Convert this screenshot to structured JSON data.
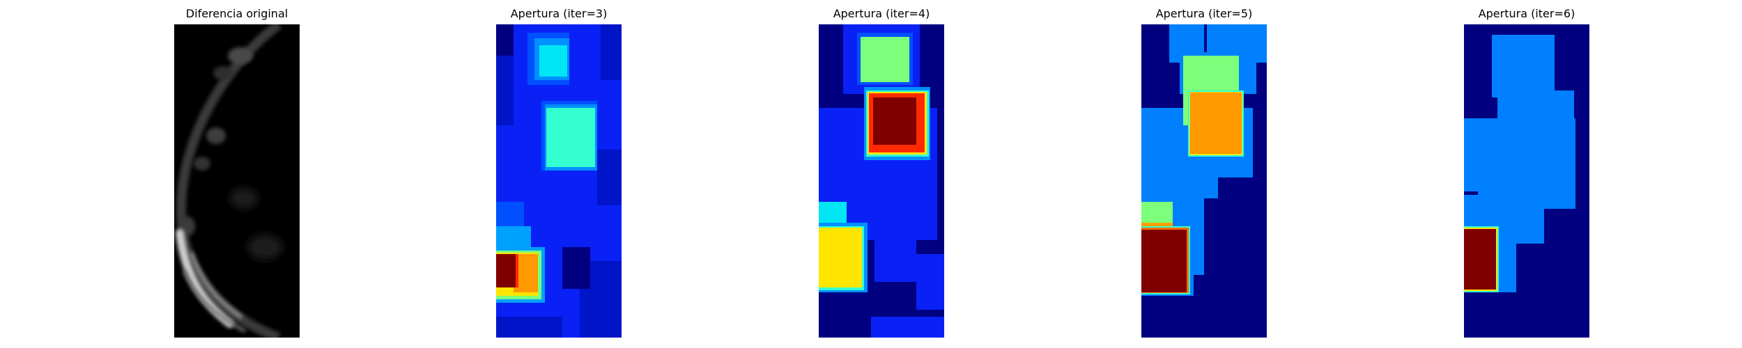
{
  "panels": [
    {
      "title": "Diferencia original"
    },
    {
      "title": "Apertura (iter=3)"
    },
    {
      "title": "Apertura (iter=4)"
    },
    {
      "title": "Apertura (iter=5)"
    },
    {
      "title": "Apertura (iter=6)"
    }
  ],
  "colormaps": {
    "original": "gray",
    "aperturas": "jet"
  }
}
